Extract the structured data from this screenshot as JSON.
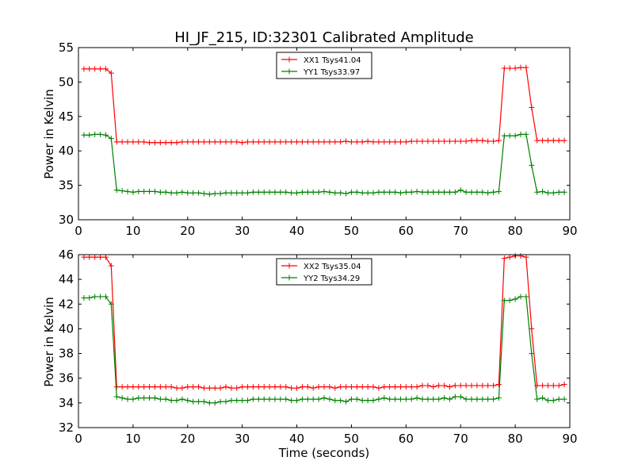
{
  "chart_data": [
    {
      "type": "line",
      "title": "HI_JF_215, ID:32301 Calibrated Amplitude",
      "xlabel": "",
      "ylabel": "Power in Kelvin",
      "xlim": [
        0,
        90
      ],
      "ylim": [
        30,
        55
      ],
      "x_ticks": [
        0,
        10,
        20,
        30,
        40,
        50,
        60,
        70,
        80,
        90
      ],
      "y_ticks": [
        30,
        35,
        40,
        45,
        50,
        55
      ],
      "legend": "top-center",
      "grid": false,
      "x": [
        1,
        2,
        3,
        4,
        5,
        6,
        7,
        8,
        9,
        10,
        11,
        12,
        13,
        14,
        15,
        16,
        17,
        18,
        19,
        20,
        21,
        22,
        23,
        24,
        25,
        26,
        27,
        28,
        29,
        30,
        31,
        32,
        33,
        34,
        35,
        36,
        37,
        38,
        39,
        40,
        41,
        42,
        43,
        44,
        45,
        46,
        47,
        48,
        49,
        50,
        51,
        52,
        53,
        54,
        55,
        56,
        57,
        58,
        59,
        60,
        61,
        62,
        63,
        64,
        65,
        66,
        67,
        68,
        69,
        70,
        71,
        72,
        73,
        74,
        75,
        76,
        77,
        78,
        79,
        80,
        81,
        82,
        83,
        84,
        85,
        86,
        87,
        88,
        89
      ],
      "series": [
        {
          "name": "XX1 Tsys41.04",
          "color": "#ff0000",
          "values": [
            51.9,
            51.9,
            51.9,
            51.9,
            51.9,
            51.3,
            41.3,
            41.3,
            41.3,
            41.3,
            41.3,
            41.3,
            41.2,
            41.2,
            41.2,
            41.2,
            41.2,
            41.2,
            41.3,
            41.3,
            41.3,
            41.3,
            41.3,
            41.3,
            41.3,
            41.3,
            41.3,
            41.3,
            41.3,
            41.2,
            41.3,
            41.3,
            41.3,
            41.3,
            41.3,
            41.3,
            41.3,
            41.3,
            41.3,
            41.3,
            41.3,
            41.3,
            41.3,
            41.3,
            41.3,
            41.3,
            41.3,
            41.3,
            41.4,
            41.3,
            41.3,
            41.3,
            41.4,
            41.3,
            41.3,
            41.3,
            41.3,
            41.3,
            41.3,
            41.3,
            41.4,
            41.4,
            41.4,
            41.4,
            41.4,
            41.4,
            41.4,
            41.4,
            41.4,
            41.4,
            41.4,
            41.5,
            41.5,
            41.5,
            41.4,
            41.4,
            41.5,
            52.0,
            52.0,
            52.0,
            52.1,
            52.1,
            46.3,
            41.5,
            41.5,
            41.5,
            41.5,
            41.5,
            41.5
          ]
        },
        {
          "name": "YY1 Tsys33.97",
          "color": "#008000",
          "values": [
            42.3,
            42.3,
            42.4,
            42.4,
            42.3,
            41.8,
            34.3,
            34.2,
            34.1,
            34.0,
            34.1,
            34.1,
            34.1,
            34.1,
            34.0,
            34.0,
            33.9,
            33.9,
            34.0,
            33.9,
            33.9,
            33.9,
            33.8,
            33.7,
            33.8,
            33.8,
            33.9,
            33.9,
            33.9,
            33.9,
            33.9,
            34.0,
            34.0,
            34.0,
            34.0,
            34.0,
            34.0,
            34.0,
            33.9,
            33.9,
            34.0,
            34.0,
            34.0,
            34.0,
            34.1,
            34.0,
            33.9,
            33.9,
            33.8,
            34.0,
            34.0,
            33.9,
            33.9,
            33.9,
            34.0,
            34.0,
            34.0,
            34.0,
            33.9,
            34.0,
            34.0,
            34.1,
            34.0,
            34.0,
            34.0,
            34.0,
            34.0,
            34.0,
            34.0,
            34.3,
            34.0,
            34.0,
            34.0,
            34.0,
            33.9,
            34.0,
            34.1,
            42.2,
            42.2,
            42.2,
            42.4,
            42.4,
            37.9,
            34.0,
            34.1,
            33.9,
            33.9,
            34.0,
            34.0
          ]
        }
      ]
    },
    {
      "type": "line",
      "title": "",
      "xlabel": "Time (seconds)",
      "ylabel": "Power in Kelvin",
      "xlim": [
        0,
        90
      ],
      "ylim": [
        32,
        46
      ],
      "x_ticks": [
        0,
        10,
        20,
        30,
        40,
        50,
        60,
        70,
        80,
        90
      ],
      "y_ticks": [
        32,
        34,
        36,
        38,
        40,
        42,
        44,
        46
      ],
      "legend": "top-center",
      "grid": false,
      "x": [
        1,
        2,
        3,
        4,
        5,
        6,
        7,
        8,
        9,
        10,
        11,
        12,
        13,
        14,
        15,
        16,
        17,
        18,
        19,
        20,
        21,
        22,
        23,
        24,
        25,
        26,
        27,
        28,
        29,
        30,
        31,
        32,
        33,
        34,
        35,
        36,
        37,
        38,
        39,
        40,
        41,
        42,
        43,
        44,
        45,
        46,
        47,
        48,
        49,
        50,
        51,
        52,
        53,
        54,
        55,
        56,
        57,
        58,
        59,
        60,
        61,
        62,
        63,
        64,
        65,
        66,
        67,
        68,
        69,
        70,
        71,
        72,
        73,
        74,
        75,
        76,
        77,
        78,
        79,
        80,
        81,
        82,
        83,
        84,
        85,
        86,
        87,
        88,
        89
      ],
      "series": [
        {
          "name": "XX2 Tsys35.04",
          "color": "#ff0000",
          "values": [
            45.8,
            45.8,
            45.8,
            45.8,
            45.8,
            45.1,
            35.3,
            35.3,
            35.3,
            35.3,
            35.3,
            35.3,
            35.3,
            35.3,
            35.3,
            35.3,
            35.3,
            35.2,
            35.2,
            35.3,
            35.3,
            35.3,
            35.2,
            35.2,
            35.2,
            35.2,
            35.3,
            35.2,
            35.2,
            35.3,
            35.3,
            35.3,
            35.3,
            35.3,
            35.3,
            35.3,
            35.3,
            35.3,
            35.2,
            35.2,
            35.3,
            35.3,
            35.2,
            35.3,
            35.3,
            35.3,
            35.2,
            35.3,
            35.3,
            35.3,
            35.3,
            35.3,
            35.3,
            35.3,
            35.2,
            35.3,
            35.3,
            35.3,
            35.3,
            35.3,
            35.3,
            35.3,
            35.4,
            35.4,
            35.3,
            35.4,
            35.4,
            35.3,
            35.4,
            35.4,
            35.4,
            35.4,
            35.4,
            35.4,
            35.4,
            35.4,
            35.5,
            45.7,
            45.8,
            45.9,
            45.9,
            45.8,
            40.0,
            35.4,
            35.4,
            35.4,
            35.4,
            35.4,
            35.5
          ]
        },
        {
          "name": "YY2 Tsys34.29",
          "color": "#008000",
          "values": [
            42.5,
            42.5,
            42.6,
            42.6,
            42.6,
            42.0,
            34.5,
            34.4,
            34.3,
            34.3,
            34.4,
            34.4,
            34.4,
            34.4,
            34.3,
            34.3,
            34.2,
            34.2,
            34.3,
            34.2,
            34.1,
            34.1,
            34.1,
            34.0,
            34.0,
            34.1,
            34.1,
            34.2,
            34.2,
            34.2,
            34.2,
            34.3,
            34.3,
            34.3,
            34.3,
            34.3,
            34.3,
            34.3,
            34.2,
            34.2,
            34.3,
            34.3,
            34.3,
            34.3,
            34.4,
            34.3,
            34.2,
            34.2,
            34.1,
            34.3,
            34.3,
            34.2,
            34.2,
            34.2,
            34.3,
            34.4,
            34.3,
            34.3,
            34.3,
            34.3,
            34.3,
            34.4,
            34.3,
            34.3,
            34.3,
            34.3,
            34.4,
            34.3,
            34.5,
            34.5,
            34.3,
            34.3,
            34.3,
            34.3,
            34.3,
            34.3,
            34.4,
            42.3,
            42.3,
            42.4,
            42.6,
            42.6,
            38.0,
            34.3,
            34.4,
            34.2,
            34.2,
            34.3,
            34.3
          ]
        }
      ]
    }
  ]
}
